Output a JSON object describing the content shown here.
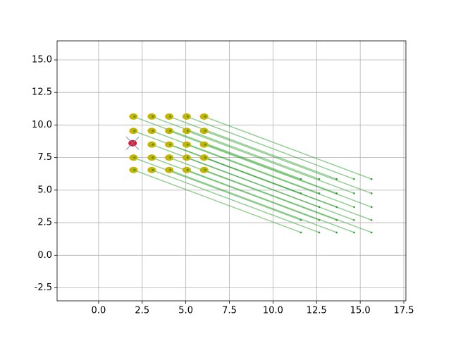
{
  "chart_data": {
    "type": "line",
    "xlim": [
      -2.38,
      17.62
    ],
    "ylim": [
      -3.5,
      16.46
    ],
    "xticks": [
      {
        "value": 0,
        "label": "0.0"
      },
      2.5,
      {
        "value": 5,
        "label": "5.0"
      },
      7.5,
      {
        "value": 10,
        "label": "10.0"
      },
      12.5,
      {
        "value": 15,
        "label": "15.0"
      },
      17.5
    ],
    "yticks": [
      -2.5,
      {
        "value": 0,
        "label": "0.0"
      },
      2.5,
      {
        "value": 5,
        "label": "5.0"
      },
      7.5,
      {
        "value": 10,
        "label": "10.0"
      },
      12.5,
      {
        "value": 15,
        "label": "15.0"
      }
    ],
    "grid": true,
    "color": "#2ca02c",
    "series": [
      {
        "x": [
          2.0,
          5.0,
          11.6
        ],
        "y": [
          10.65,
          9.15,
          5.85
        ]
      },
      {
        "x": [
          3.05,
          6.05,
          12.65
        ],
        "y": [
          10.65,
          9.15,
          5.85
        ]
      },
      {
        "x": [
          4.05,
          7.05,
          13.65
        ],
        "y": [
          10.65,
          9.15,
          5.85
        ]
      },
      {
        "x": [
          5.05,
          8.05,
          14.65
        ],
        "y": [
          10.65,
          9.15,
          5.85
        ]
      },
      {
        "x": [
          6.05,
          9.05,
          15.65
        ],
        "y": [
          10.65,
          9.15,
          5.85
        ]
      },
      {
        "x": [
          2.0,
          5.0,
          11.6
        ],
        "y": [
          9.55,
          8.05,
          4.75
        ]
      },
      {
        "x": [
          3.05,
          6.05,
          12.65
        ],
        "y": [
          9.55,
          8.05,
          4.75
        ]
      },
      {
        "x": [
          4.05,
          7.05,
          13.65
        ],
        "y": [
          9.55,
          8.05,
          4.75
        ]
      },
      {
        "x": [
          5.05,
          8.05,
          14.65
        ],
        "y": [
          9.55,
          8.05,
          4.75
        ]
      },
      {
        "x": [
          6.05,
          9.05,
          15.65
        ],
        "y": [
          9.55,
          8.05,
          4.75
        ]
      },
      {
        "x": [
          3.05,
          6.05,
          12.65
        ],
        "y": [
          8.5,
          7.0,
          3.7
        ]
      },
      {
        "x": [
          4.05,
          7.05,
          13.65
        ],
        "y": [
          8.5,
          7.0,
          3.7
        ]
      },
      {
        "x": [
          5.05,
          8.05,
          14.65
        ],
        "y": [
          8.5,
          7.0,
          3.7
        ]
      },
      {
        "x": [
          6.05,
          9.05,
          15.65
        ],
        "y": [
          8.5,
          7.0,
          3.7
        ]
      },
      {
        "x": [
          2.0,
          5.0,
          11.6
        ],
        "y": [
          7.5,
          6.0,
          2.7
        ]
      },
      {
        "x": [
          3.05,
          6.05,
          12.65
        ],
        "y": [
          7.5,
          6.0,
          2.7
        ]
      },
      {
        "x": [
          4.05,
          7.05,
          13.65
        ],
        "y": [
          7.5,
          6.0,
          2.7
        ]
      },
      {
        "x": [
          5.05,
          8.05,
          14.65
        ],
        "y": [
          7.5,
          6.0,
          2.7
        ]
      },
      {
        "x": [
          6.05,
          9.05,
          15.65
        ],
        "y": [
          7.5,
          6.0,
          2.7
        ]
      },
      {
        "x": [
          2.0,
          5.0,
          11.6
        ],
        "y": [
          6.55,
          5.05,
          1.75
        ]
      },
      {
        "x": [
          3.05,
          6.05,
          12.65
        ],
        "y": [
          6.55,
          5.05,
          1.75
        ]
      },
      {
        "x": [
          4.05,
          7.05,
          13.65
        ],
        "y": [
          6.55,
          5.05,
          1.75
        ]
      },
      {
        "x": [
          5.05,
          8.05,
          14.65
        ],
        "y": [
          6.55,
          5.05,
          1.75
        ]
      },
      {
        "x": [
          6.05,
          9.05,
          15.65
        ],
        "y": [
          6.55,
          5.05,
          1.75
        ]
      }
    ],
    "markers": {
      "color": "#c8b400",
      "x": [
        2.0,
        3.05,
        4.05,
        5.05,
        6.05,
        2.0,
        3.05,
        4.05,
        5.05,
        6.05,
        3.05,
        4.05,
        5.05,
        6.05,
        2.0,
        3.05,
        4.05,
        5.05,
        6.05,
        2.0,
        3.05,
        4.05,
        5.05,
        6.05
      ],
      "y": [
        10.65,
        10.65,
        10.65,
        10.65,
        10.65,
        9.55,
        9.55,
        9.55,
        9.55,
        9.55,
        8.5,
        8.5,
        8.5,
        8.5,
        7.5,
        7.5,
        7.5,
        7.5,
        7.5,
        6.55,
        6.55,
        6.55,
        6.55,
        6.55
      ]
    },
    "highlight": {
      "x": 1.95,
      "y": 8.6,
      "color": "#e8141b"
    },
    "cross": {
      "x": 1.95,
      "y": 8.6,
      "color": "#6f84e0"
    }
  }
}
